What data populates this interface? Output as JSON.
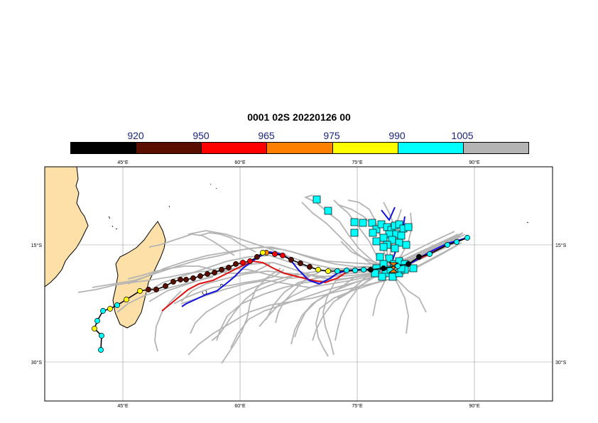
{
  "title": "0001 02S 20220126 00",
  "legend": {
    "thresholds": [
      "920",
      "950",
      "965",
      "975",
      "990",
      "1005"
    ],
    "colors": [
      "#000000",
      "#5a0e00",
      "#ff0000",
      "#ff8000",
      "#ffff00",
      "#00ffff",
      "#b4b4b4"
    ]
  },
  "axes": {
    "lon_ticks": [
      "45°E",
      "60°E",
      "75°E",
      "90°E"
    ],
    "lat_ticks": [
      "15°S",
      "30°S"
    ],
    "lon_range": [
      35,
      100
    ],
    "lat_range": [
      -38,
      -5
    ]
  },
  "colors": {
    "land": "#fde0a8",
    "ensemble": "#b4b4b4",
    "analysis_red": "#e01010",
    "analysis_blue": "#1010e0"
  },
  "icons": {
    "marker": "circle-marker",
    "position": "square-marker",
    "current": "hourglass-marker"
  }
}
